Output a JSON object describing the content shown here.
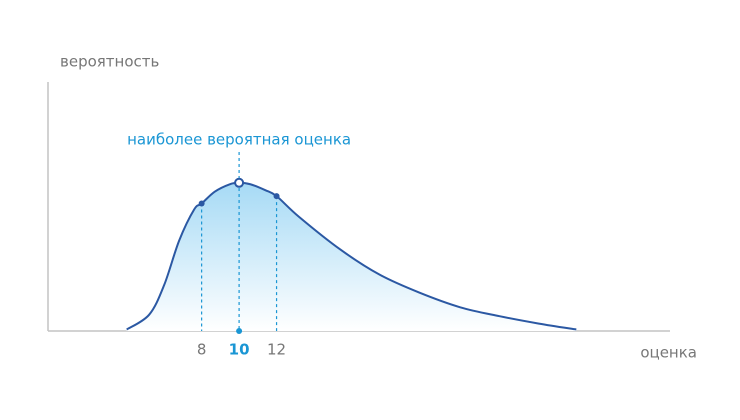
{
  "chart_data": {
    "type": "area",
    "annotation": "наиболее вероятная оценка",
    "y_label": "вероятность",
    "x_label": "оценка",
    "x": [
      4,
      5.2,
      6,
      6.8,
      7.6,
      8,
      8.7,
      9.5,
      10,
      10.6,
      11.4,
      12,
      13.2,
      15.4,
      17.5,
      19.6,
      21.8,
      23.9,
      26,
      28
    ],
    "values": [
      0.01,
      0.11,
      0.31,
      0.61,
      0.82,
      0.86,
      0.94,
      0.99,
      1.0,
      0.99,
      0.95,
      0.91,
      0.77,
      0.55,
      0.38,
      0.26,
      0.16,
      0.1,
      0.05,
      0.01
    ],
    "color": "#2b58a3",
    "fill_color": "#a6daf5",
    "highlight_color": "#1a96d4",
    "xlim": [
      -0.2,
      33
    ],
    "ylim": [
      0,
      1.68
    ],
    "xticks": [
      8,
      10,
      12
    ]
  }
}
